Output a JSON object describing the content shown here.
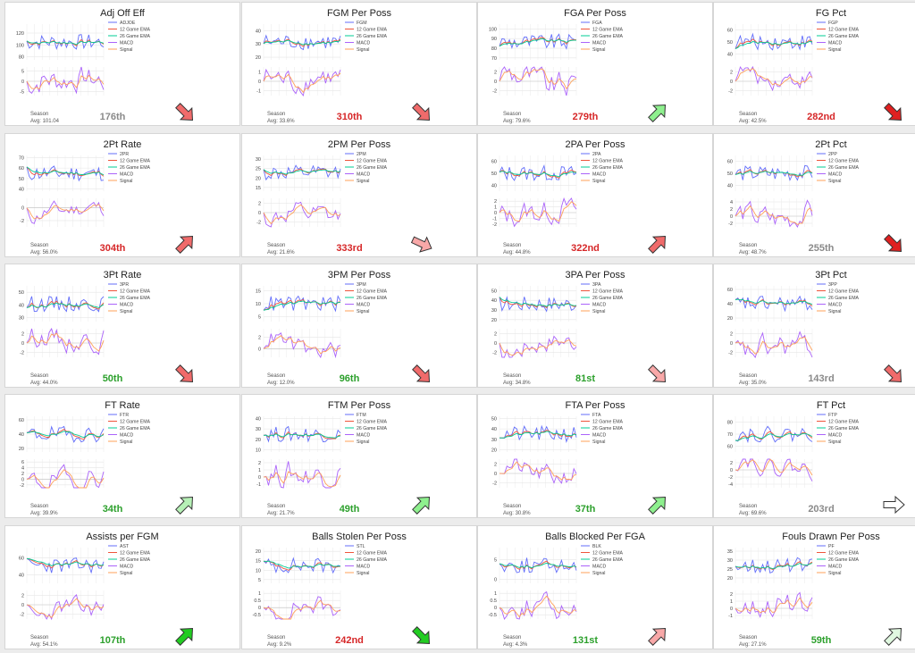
{
  "legend_labels": [
    "12 Game EMA",
    "26 Game EMA",
    "MACD",
    "Signal"
  ],
  "season_label": "Season",
  "colors": {
    "stat": "#636efa",
    "ema12": "#ef553b",
    "ema26": "#00cc96",
    "macd": "#ab63fa",
    "signal": "#ffa15a",
    "rank_red": "#d62728",
    "rank_green": "#2ca02c",
    "rank_gray": "#8a8a8a"
  },
  "chart_data": [
    {
      "type": "line",
      "title": "Adj Off Eff",
      "series_name": "ADJOE",
      "top_ticks": [
        "120",
        "100",
        "80"
      ],
      "top_range": [
        75,
        135
      ],
      "bot_ticks": [
        "5",
        "0",
        "-5"
      ],
      "bot_range": [
        -7,
        7
      ],
      "avg": "Avg: 101.04",
      "rank": "176th",
      "rank_color": "gray",
      "arrow": "down",
      "arrow_color": "#f06b6b"
    },
    {
      "type": "line",
      "title": "FGM Per Poss",
      "series_name": "FGM",
      "top_ticks": [
        "40",
        "30",
        "20"
      ],
      "top_range": [
        18,
        45
      ],
      "bot_ticks": [
        "1",
        "0",
        "-1"
      ],
      "bot_range": [
        -1.5,
        1.5
      ],
      "avg": "Avg: 33.6%",
      "rank": "310th",
      "rank_color": "red",
      "arrow": "down",
      "arrow_color": "#f06b6b"
    },
    {
      "type": "line",
      "title": "FGA Per Poss",
      "series_name": "FGA",
      "top_ticks": [
        "100",
        "90",
        "80",
        "70"
      ],
      "top_range": [
        68,
        105
      ],
      "bot_ticks": [
        "2",
        "0",
        "-2"
      ],
      "bot_range": [
        -3,
        3
      ],
      "avg": "Avg: 79.6%",
      "rank": "279th",
      "rank_color": "red",
      "arrow": "up",
      "arrow_color": "#8ef08e"
    },
    {
      "type": "line",
      "title": "FG Pct",
      "series_name": "FGP",
      "top_ticks": [
        "60",
        "50",
        "40"
      ],
      "top_range": [
        35,
        65
      ],
      "bot_ticks": [
        "2",
        "0",
        "-2"
      ],
      "bot_range": [
        -3,
        3
      ],
      "avg": "Avg: 42.5%",
      "rank": "282nd",
      "rank_color": "red",
      "arrow": "down",
      "arrow_color": "#e02020"
    },
    {
      "type": "line",
      "title": "2Pt Rate",
      "series_name": "2PR",
      "top_ticks": [
        "70",
        "60",
        "50",
        "40"
      ],
      "top_range": [
        38,
        72
      ],
      "bot_ticks": [
        "0",
        "-2"
      ],
      "bot_range": [
        -3,
        1.5
      ],
      "avg": "Avg: 56.0%",
      "rank": "304th",
      "rank_color": "red",
      "arrow": "up",
      "arrow_color": "#f06b6b"
    },
    {
      "type": "line",
      "title": "2PM Per Poss",
      "series_name": "2PM",
      "top_ticks": [
        "30",
        "25",
        "20",
        "15"
      ],
      "top_range": [
        13,
        32
      ],
      "bot_ticks": [
        "2",
        "0",
        "-2"
      ],
      "bot_range": [
        -3,
        3
      ],
      "avg": "Avg: 21.6%",
      "rank": "333rd",
      "rank_color": "red",
      "arrow": "right-down",
      "arrow_color": "#f8a8a8"
    },
    {
      "type": "line",
      "title": "2PA Per Poss",
      "series_name": "2PA",
      "top_ticks": [
        "60",
        "50",
        "40"
      ],
      "top_range": [
        35,
        65
      ],
      "bot_ticks": [
        "2",
        "1",
        "0",
        "-1",
        "-2"
      ],
      "bot_range": [
        -2.5,
        2.5
      ],
      "avg": "Avg: 44.8%",
      "rank": "322nd",
      "rank_color": "red",
      "arrow": "up",
      "arrow_color": "#f06b6b"
    },
    {
      "type": "line",
      "title": "2Pt Pct",
      "series_name": "2PP",
      "top_ticks": [
        "60",
        "50",
        "40"
      ],
      "top_range": [
        35,
        65
      ],
      "bot_ticks": [
        "4",
        "2",
        "0",
        "-2"
      ],
      "bot_range": [
        -3,
        5
      ],
      "avg": "Avg: 48.7%",
      "rank": "255th",
      "rank_color": "gray",
      "arrow": "down",
      "arrow_color": "#e02020"
    },
    {
      "type": "line",
      "title": "3Pt Rate",
      "series_name": "3PR",
      "top_ticks": [
        "50",
        "40",
        "30"
      ],
      "top_range": [
        27,
        55
      ],
      "bot_ticks": [
        "2",
        "0",
        "-2"
      ],
      "bot_range": [
        -3,
        3
      ],
      "avg": "Avg: 44.0%",
      "rank": "50th",
      "rank_color": "green",
      "arrow": "down",
      "arrow_color": "#f06b6b"
    },
    {
      "type": "line",
      "title": "3PM Per Poss",
      "series_name": "3PM",
      "top_ticks": [
        "15",
        "10",
        "5"
      ],
      "top_range": [
        3,
        17
      ],
      "bot_ticks": [
        "2",
        "0"
      ],
      "bot_range": [
        -1.5,
        3.5
      ],
      "avg": "Avg: 12.0%",
      "rank": "96th",
      "rank_color": "green",
      "arrow": "down",
      "arrow_color": "#f06b6b"
    },
    {
      "type": "line",
      "title": "3PA Per Poss",
      "series_name": "3PA",
      "top_ticks": [
        "50",
        "40",
        "30",
        "20"
      ],
      "top_range": [
        18,
        55
      ],
      "bot_ticks": [
        "2",
        "0",
        "-2"
      ],
      "bot_range": [
        -3,
        3
      ],
      "avg": "Avg: 34.8%",
      "rank": "81st",
      "rank_color": "green",
      "arrow": "down",
      "arrow_color": "#f8a8a8"
    },
    {
      "type": "line",
      "title": "3Pt Pct",
      "series_name": "3PP",
      "top_ticks": [
        "60",
        "40",
        "20"
      ],
      "top_range": [
        15,
        65
      ],
      "bot_ticks": [
        "2",
        "0",
        "-2"
      ],
      "bot_range": [
        -3,
        3
      ],
      "avg": "Avg: 35.0%",
      "rank": "143rd",
      "rank_color": "gray",
      "arrow": "down",
      "arrow_color": "#f06b6b"
    },
    {
      "type": "line",
      "title": "FT Rate",
      "series_name": "FTR",
      "top_ticks": [
        "60",
        "40",
        "20"
      ],
      "top_range": [
        15,
        65
      ],
      "bot_ticks": [
        "6",
        "4",
        "2",
        "0",
        "-2"
      ],
      "bot_range": [
        -3,
        7
      ],
      "avg": "Avg: 39.9%",
      "rank": "34th",
      "rank_color": "green",
      "arrow": "up",
      "arrow_color": "#b6f0b6"
    },
    {
      "type": "line",
      "title": "FTM Per Poss",
      "series_name": "FTM",
      "top_ticks": [
        "40",
        "30",
        "20",
        "10"
      ],
      "top_range": [
        8,
        42
      ],
      "bot_ticks": [
        "2",
        "1",
        "0",
        "-1"
      ],
      "bot_range": [
        -1.5,
        2.5
      ],
      "avg": "Avg: 21.7%",
      "rank": "49th",
      "rank_color": "green",
      "arrow": "up",
      "arrow_color": "#8ef08e"
    },
    {
      "type": "line",
      "title": "FTA Per Poss",
      "series_name": "FTA",
      "top_ticks": [
        "50",
        "40",
        "30",
        "20"
      ],
      "top_range": [
        18,
        52
      ],
      "bot_ticks": [
        "2",
        "0",
        "-2"
      ],
      "bot_range": [
        -3,
        3
      ],
      "avg": "Avg: 30.8%",
      "rank": "37th",
      "rank_color": "green",
      "arrow": "up",
      "arrow_color": "#8ef08e"
    },
    {
      "type": "line",
      "title": "FT Pct",
      "series_name": "FTP",
      "top_ticks": [
        "80",
        "70",
        "60"
      ],
      "top_range": [
        55,
        85
      ],
      "bot_ticks": [
        "2",
        "0",
        "-2",
        "-4"
      ],
      "bot_range": [
        -5,
        3
      ],
      "avg": "Avg: 69.6%",
      "rank": "203rd",
      "rank_color": "gray",
      "arrow": "right",
      "arrow_color": "#ffffff"
    },
    {
      "type": "line",
      "title": "Assists per FGM",
      "series_name": "AST",
      "top_ticks": [
        "60",
        "40"
      ],
      "top_range": [
        30,
        72
      ],
      "bot_ticks": [
        "2",
        "0",
        "-2"
      ],
      "bot_range": [
        -3,
        3
      ],
      "avg": "Avg: 54.1%",
      "rank": "107th",
      "rank_color": "green",
      "arrow": "up",
      "arrow_color": "#22cc22"
    },
    {
      "type": "line",
      "title": "Balls Stolen Per Poss",
      "series_name": "STL",
      "top_ticks": [
        "20",
        "15",
        "10",
        "5"
      ],
      "top_range": [
        3,
        22
      ],
      "bot_ticks": [
        "1",
        "0.5",
        "0",
        "-0.5"
      ],
      "bot_range": [
        -0.8,
        1.2
      ],
      "avg": "Avg: 9.2%",
      "rank": "242nd",
      "rank_color": "red",
      "arrow": "down",
      "arrow_color": "#22cc22"
    },
    {
      "type": "line",
      "title": "Balls Blocked Per FGA",
      "series_name": "BLK",
      "top_ticks": [
        "5",
        "0"
      ],
      "top_range": [
        -1,
        8
      ],
      "bot_ticks": [
        "1",
        "0.5",
        "0",
        "-0.5"
      ],
      "bot_range": [
        -0.8,
        1.2
      ],
      "avg": "Avg: 4.3%",
      "rank": "131st",
      "rank_color": "green",
      "arrow": "up",
      "arrow_color": "#f8a8a8"
    },
    {
      "type": "line",
      "title": "Fouls Drawn Per Poss",
      "series_name": "PF",
      "top_ticks": [
        "35",
        "30",
        "25",
        "20"
      ],
      "top_range": [
        17,
        37
      ],
      "bot_ticks": [
        "2",
        "1",
        "0",
        "-1"
      ],
      "bot_range": [
        -1.5,
        2.5
      ],
      "avg": "Avg: 27.1%",
      "rank": "59th",
      "rank_color": "green",
      "arrow": "up",
      "arrow_color": "#e0f8e0"
    }
  ]
}
